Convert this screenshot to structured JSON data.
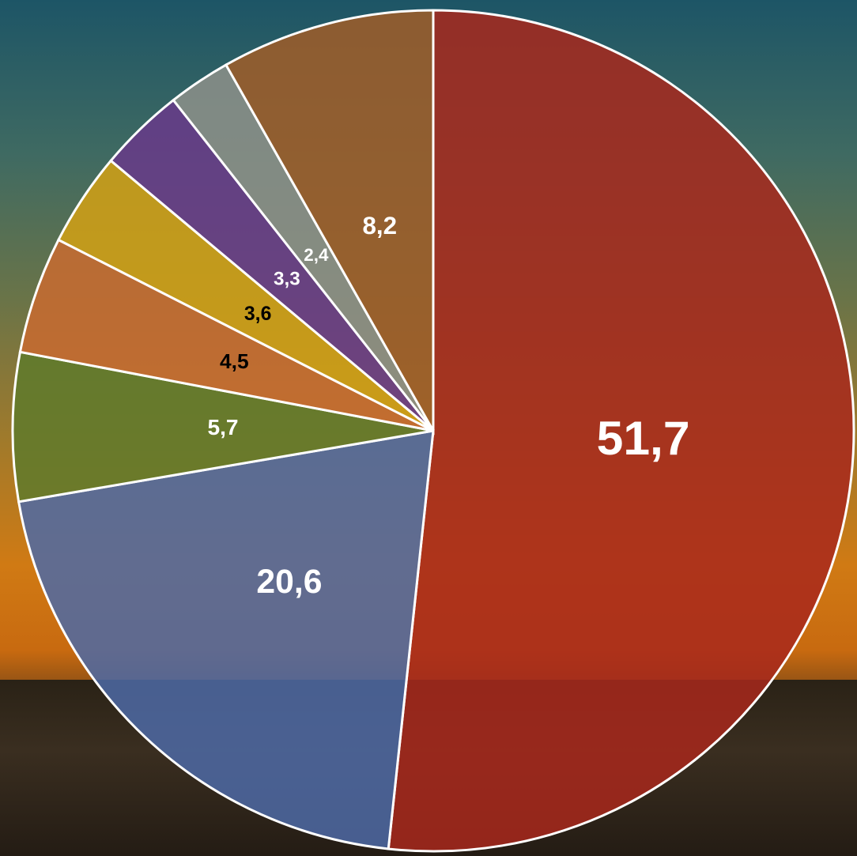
{
  "chart_data": {
    "type": "pie",
    "values": [
      51.7,
      20.6,
      5.7,
      4.5,
      3.6,
      3.3,
      2.4,
      8.2
    ],
    "value_labels": [
      "51,7",
      "20,6",
      "5,7",
      "4,5",
      "3,6",
      "3,3",
      "2,4",
      "8,2"
    ],
    "colors": [
      "#a8281c",
      "#4d6aa6",
      "#5f7a2c",
      "#c96b30",
      "#d4a114",
      "#683a8a",
      "#8d908a",
      "#a05d28"
    ],
    "label_colors": [
      "#ffffff",
      "#ffffff",
      "#ffffff",
      "#000000",
      "#000000",
      "#ffffff",
      "#ffffff",
      "#ffffff"
    ]
  }
}
